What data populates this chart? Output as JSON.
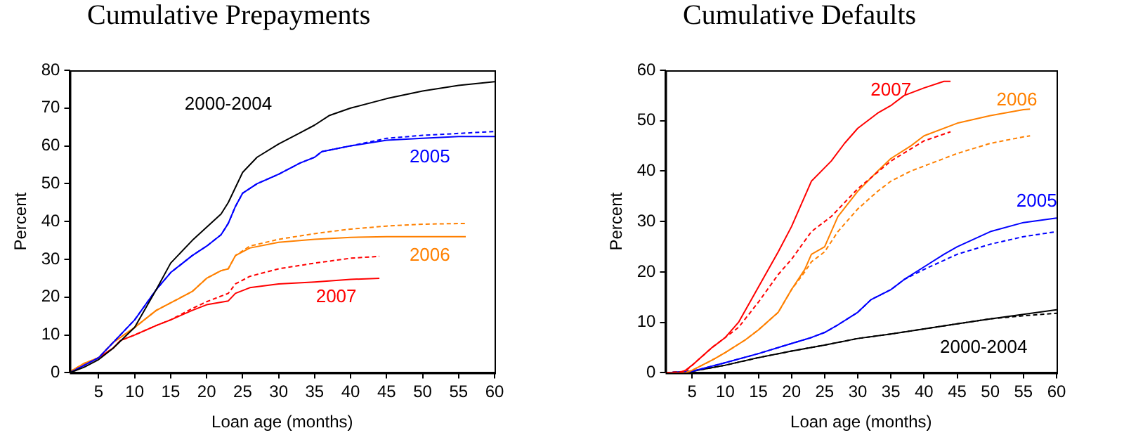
{
  "chart_data": [
    {
      "type": "line",
      "title": "Cumulative Prepayments",
      "xlabel": "Loan age (months)",
      "ylabel": "Percent",
      "xlim": [
        1,
        60
      ],
      "xticks": [
        5,
        10,
        15,
        20,
        25,
        30,
        35,
        40,
        45,
        50,
        55,
        60
      ],
      "ylim": [
        0,
        80
      ],
      "yticks": [
        0,
        10,
        20,
        30,
        40,
        50,
        60,
        70,
        80
      ],
      "grid": false,
      "legend": false,
      "marker": "none",
      "series": [
        {
          "name": "2000-2004",
          "color": "#000000",
          "line_style": "solid",
          "x": [
            1,
            3,
            5,
            7,
            10,
            13,
            15,
            18,
            20,
            22,
            23,
            24,
            25,
            27,
            30,
            33,
            35,
            37,
            40,
            45,
            50,
            55,
            60
          ],
          "values": [
            0,
            1.5,
            3.5,
            6.5,
            12,
            22,
            29,
            35,
            38.5,
            42,
            45,
            49,
            53,
            57,
            60.5,
            63.5,
            65.5,
            68,
            70,
            72.5,
            74.5,
            76,
            77
          ]
        },
        {
          "name": "2005",
          "color": "#0000ff",
          "line_style": "solid",
          "x": [
            1,
            3,
            5,
            7,
            10,
            13,
            15,
            18,
            20,
            22,
            23,
            24,
            25,
            27,
            30,
            33,
            35,
            36,
            40,
            45,
            50,
            55,
            60
          ],
          "values": [
            0,
            2,
            4,
            8,
            14,
            22,
            26.5,
            31,
            33.5,
            36.5,
            39.5,
            44,
            47.5,
            50,
            52.5,
            55.5,
            57,
            58.5,
            60,
            61.5,
            62,
            62.5,
            62.5
          ]
        },
        {
          "color": "#0000ff",
          "line_style": "dashed",
          "x": [
            1,
            3,
            5,
            7,
            10,
            13,
            15,
            18,
            20,
            22,
            23,
            24,
            25,
            27,
            30,
            33,
            35,
            36,
            40,
            45,
            50,
            55,
            60
          ],
          "values": [
            0,
            2,
            4,
            8,
            14,
            22,
            26.5,
            31,
            33.5,
            36.5,
            39.5,
            44,
            47.5,
            50,
            52.5,
            55.5,
            57,
            58.5,
            60,
            62,
            62.8,
            63.3,
            63.8
          ]
        },
        {
          "name": "2006",
          "color": "#ff8000",
          "line_style": "solid",
          "x": [
            1,
            3,
            5,
            7,
            10,
            13,
            15,
            18,
            20,
            22,
            23,
            24,
            26,
            30,
            35,
            40,
            45,
            50,
            56
          ],
          "values": [
            0.3,
            2.5,
            4,
            8,
            12,
            16.5,
            18.5,
            21.5,
            25,
            27,
            27.5,
            31,
            33,
            34.5,
            35.3,
            35.8,
            36,
            36,
            36
          ]
        },
        {
          "color": "#ff8000",
          "line_style": "dashed",
          "x": [
            1,
            3,
            5,
            7,
            10,
            13,
            15,
            18,
            20,
            22,
            23,
            24,
            26,
            30,
            35,
            40,
            45,
            50,
            56
          ],
          "values": [
            0.3,
            2.5,
            4,
            8,
            12,
            16.5,
            18.5,
            21.5,
            25,
            27,
            27.5,
            31,
            33.5,
            35.3,
            36.8,
            38,
            38.8,
            39.3,
            39.5
          ]
        },
        {
          "name": "2007",
          "color": "#ff0000",
          "line_style": "solid",
          "x": [
            1,
            3,
            5,
            7,
            8,
            10,
            13,
            15,
            18,
            20,
            23,
            24,
            26,
            30,
            35,
            40,
            44
          ],
          "values": [
            0,
            2,
            4,
            6.5,
            8.5,
            10,
            12.5,
            14,
            16.5,
            18,
            19,
            21,
            22.5,
            23.5,
            24,
            24.7,
            25
          ]
        },
        {
          "color": "#ff0000",
          "line_style": "dashed",
          "x": [
            1,
            3,
            5,
            7,
            8,
            10,
            13,
            15,
            18,
            20,
            23,
            24,
            26,
            30,
            35,
            40,
            44
          ],
          "values": [
            0,
            2,
            4,
            6.5,
            8.5,
            10,
            12.5,
            14,
            17,
            18.8,
            21,
            23.5,
            25.5,
            27.5,
            29,
            30.3,
            30.8
          ]
        }
      ]
    },
    {
      "type": "line",
      "title": "Cumulative Defaults",
      "xlabel": "Loan age (months)",
      "ylabel": "Percent",
      "xlim": [
        1,
        60
      ],
      "xticks": [
        5,
        10,
        15,
        20,
        25,
        30,
        35,
        40,
        45,
        50,
        55,
        60
      ],
      "ylim": [
        0,
        60
      ],
      "yticks": [
        0,
        10,
        20,
        30,
        40,
        50,
        60
      ],
      "grid": false,
      "legend": false,
      "marker": "none",
      "series": [
        {
          "name": "2007",
          "color": "#ff0000",
          "line_style": "solid",
          "x": [
            1,
            3,
            4,
            5,
            8,
            10,
            12,
            15,
            18,
            20,
            23,
            26,
            28,
            30,
            33,
            35,
            37,
            40,
            43,
            44
          ],
          "values": [
            0,
            0,
            0.5,
            1.5,
            5,
            7,
            10,
            17,
            24,
            29,
            38,
            42,
            45.5,
            48.5,
            51.5,
            53,
            55,
            56.5,
            57.8,
            57.8
          ]
        },
        {
          "color": "#ff0000",
          "line_style": "dashed",
          "x": [
            1,
            4,
            5,
            8,
            10,
            12,
            15,
            18,
            20,
            23,
            26,
            30,
            35,
            40,
            44
          ],
          "values": [
            0,
            0.3,
            1.5,
            5,
            7,
            9,
            14,
            19.5,
            22.5,
            28,
            31,
            36.5,
            42,
            46,
            47.8
          ]
        },
        {
          "name": "2006",
          "color": "#ff8000",
          "line_style": "solid",
          "x": [
            1,
            4,
            5,
            8,
            10,
            13,
            15,
            18,
            20,
            22,
            23,
            25,
            27,
            30,
            33,
            35,
            38,
            40,
            45,
            50,
            55,
            56
          ],
          "values": [
            0,
            0,
            0.5,
            2.5,
            4,
            6.5,
            8.5,
            12,
            16.5,
            20.5,
            23.5,
            25,
            31,
            36,
            40,
            42.5,
            45,
            47,
            49.5,
            51,
            52.2,
            52.3
          ]
        },
        {
          "color": "#ff8000",
          "line_style": "dashed",
          "x": [
            1,
            4,
            5,
            8,
            10,
            13,
            15,
            18,
            20,
            22,
            23,
            25,
            27,
            30,
            33,
            35,
            38,
            40,
            45,
            50,
            55,
            56
          ],
          "values": [
            0,
            0,
            0.5,
            2.5,
            4,
            6.5,
            8.5,
            12,
            16.5,
            20,
            22,
            24,
            28,
            32.5,
            36,
            38,
            40,
            41,
            43.5,
            45.5,
            46.8,
            47
          ]
        },
        {
          "name": "2005",
          "color": "#0000ff",
          "line_style": "solid",
          "x": [
            1,
            5,
            10,
            15,
            20,
            23,
            25,
            27,
            30,
            32,
            35,
            37,
            40,
            43,
            45,
            50,
            55,
            60
          ],
          "values": [
            0,
            0.3,
            2,
            3.8,
            5.8,
            7,
            8,
            9.5,
            12,
            14.5,
            16.5,
            18.5,
            21,
            23.5,
            25,
            28,
            29.8,
            30.7
          ]
        },
        {
          "color": "#0000ff",
          "line_style": "dashed",
          "x": [
            1,
            5,
            10,
            15,
            20,
            23,
            25,
            27,
            30,
            32,
            35,
            37,
            40,
            45,
            50,
            55,
            60
          ],
          "values": [
            0,
            0.3,
            2,
            3.8,
            5.8,
            7,
            8,
            9.5,
            12,
            14.5,
            16.5,
            18.5,
            20.5,
            23.5,
            25.5,
            27,
            28
          ]
        },
        {
          "name": "2000-2004",
          "color": "#000000",
          "line_style": "solid",
          "x": [
            1,
            5,
            10,
            15,
            20,
            25,
            30,
            35,
            40,
            45,
            50,
            55,
            60
          ],
          "values": [
            0,
            0.3,
            1.5,
            3,
            4.3,
            5.5,
            6.8,
            7.7,
            8.7,
            9.7,
            10.7,
            11.6,
            12.5
          ]
        },
        {
          "color": "#000000",
          "line_style": "dashed",
          "x": [
            1,
            5,
            10,
            15,
            20,
            25,
            30,
            35,
            40,
            45,
            50,
            55,
            60
          ],
          "values": [
            0,
            0.3,
            1.5,
            3,
            4.3,
            5.5,
            6.8,
            7.7,
            8.7,
            9.7,
            10.7,
            11.3,
            11.8
          ]
        }
      ]
    }
  ]
}
